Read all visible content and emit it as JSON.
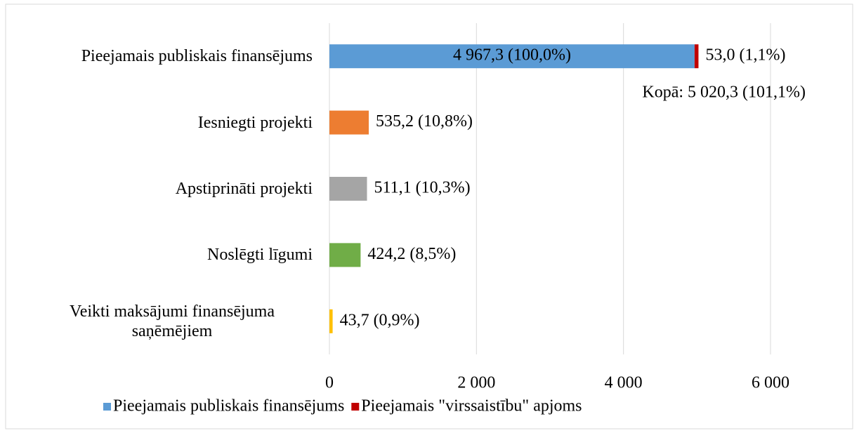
{
  "chart_data": {
    "type": "bar",
    "orientation": "horizontal",
    "stacked": true,
    "categories": [
      "Pieejamais publiskais finansējums",
      "Iesniegti projekti",
      "Apstiprināti projekti",
      "Noslēgti līgumi",
      "Veikti maksājumi finansējuma saņēmējiem"
    ],
    "series": [
      {
        "name": "Pieejamais publiskais finansējums",
        "color": "#5b9bd5",
        "point_colors": [
          "#5b9bd5",
          "#ed7d31",
          "#a5a5a5",
          "#70ad47",
          "#ffc000"
        ],
        "values": [
          4967.3,
          535.2,
          511.1,
          424.2,
          43.7
        ],
        "value_labels": [
          "4 967,3 (100,0%)",
          "535,2 (10,8%)",
          "511,1 (10,3%)",
          "424,2 (8,5%)",
          "43,7 (0,9%)"
        ]
      },
      {
        "name": "Pieejamais \"virssaistību\" apjoms",
        "color": "#c00000",
        "values": [
          53.0,
          null,
          null,
          null,
          null
        ],
        "value_labels": [
          "53,0 (1,1%)",
          null,
          null,
          null,
          null
        ]
      }
    ],
    "annotations": [
      "Kopā: 5 020,3 (101,1%)"
    ],
    "xlim": [
      0,
      6000
    ],
    "xticks": [
      0,
      {
        "value": 2000,
        "label": "2 000"
      },
      {
        "value": 4000,
        "label": "4 000"
      },
      {
        "value": 6000,
        "label": "6 000"
      }
    ],
    "grid": true,
    "legend": "bottom"
  }
}
